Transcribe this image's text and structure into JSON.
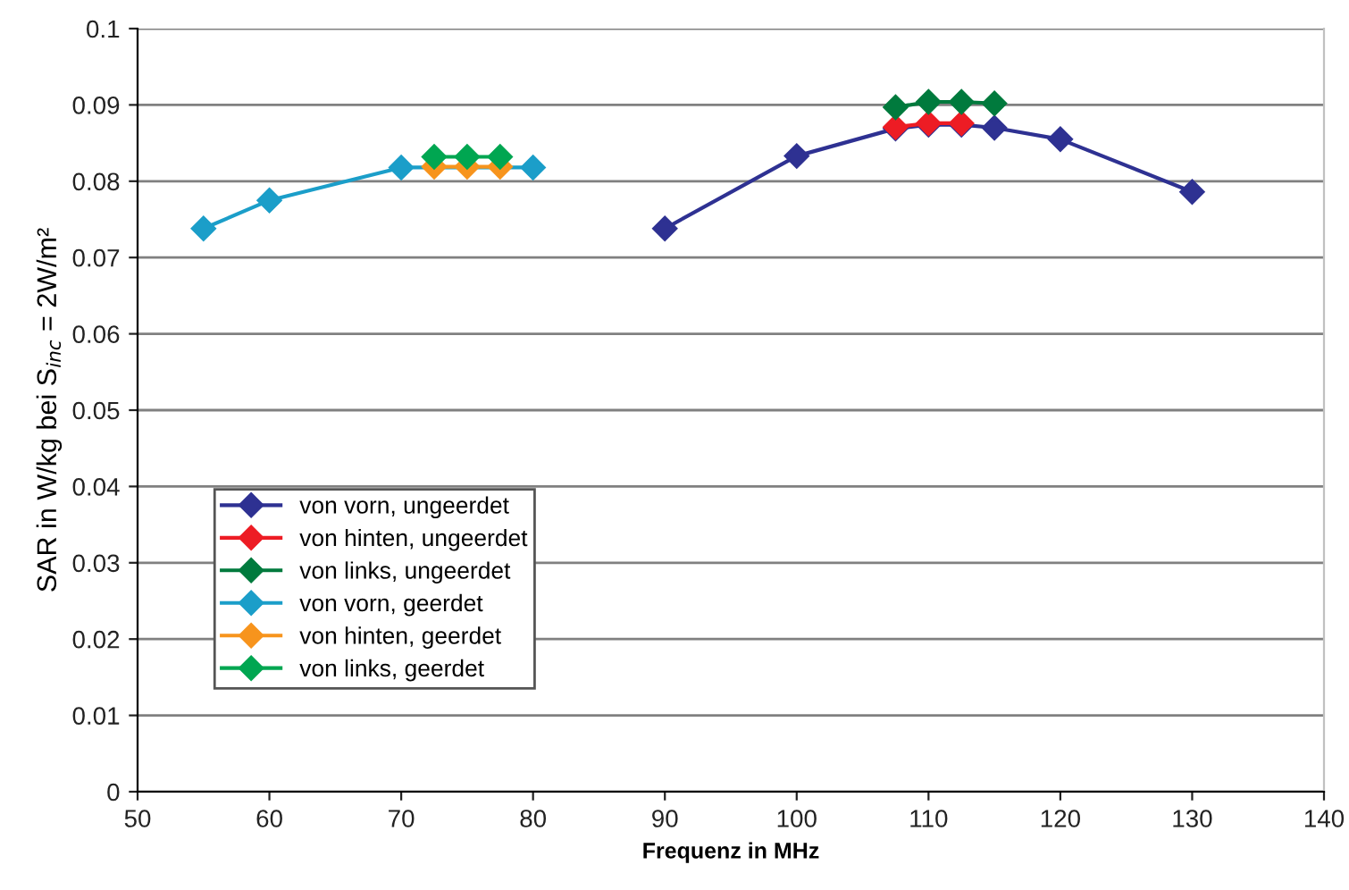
{
  "chart_data": {
    "type": "line",
    "xlabel": "Frequenz in MHz",
    "ylabel": "SAR in W/kg bei S$_{inc}$ = 2W/m²",
    "xlim": [
      50,
      140
    ],
    "ylim": [
      0,
      0.1
    ],
    "xticks": [
      50,
      60,
      70,
      80,
      90,
      100,
      110,
      120,
      130,
      140
    ],
    "yticks": [
      0,
      0.01,
      0.02,
      0.03,
      0.04,
      0.05,
      0.06,
      0.07,
      0.08,
      0.09,
      {
        "value": 0.1,
        "label": "0.1"
      }
    ],
    "grid": "y",
    "legend": "bottom left",
    "marker": "diamond",
    "line_style": "solid",
    "series": [
      {
        "name": "von vorn, ungeerdet",
        "color": "#2e3192",
        "x": [
          90,
          100,
          107.5,
          110,
          112.5,
          115,
          120,
          130
        ],
        "values": [
          0.0738,
          0.0833,
          0.0869,
          0.0874,
          0.0874,
          0.087,
          0.0855,
          0.0786
        ]
      },
      {
        "name": "von hinten, ungeerdet",
        "color": "#ed1c24",
        "x": [
          107.5,
          110,
          112.5
        ],
        "values": [
          0.0871,
          0.0876,
          0.0876
        ]
      },
      {
        "name": "von links, ungeerdet",
        "color": "#007a3d",
        "x": [
          107.5,
          110,
          112.5,
          115
        ],
        "values": [
          0.0897,
          0.0904,
          0.0904,
          0.0902
        ]
      },
      {
        "name": "von vorn, geerdet",
        "color": "#1b9ec9",
        "x": [
          55,
          60,
          70,
          80
        ],
        "values": [
          0.0738,
          0.0775,
          0.0818,
          0.0818
        ]
      },
      {
        "name": "von hinten, geerdet",
        "color": "#f7941d",
        "x": [
          72.5,
          75,
          77.5
        ],
        "values": [
          0.0819,
          0.0819,
          0.0819
        ]
      },
      {
        "name": "von links, geerdet",
        "color": "#00a651",
        "x": [
          72.5,
          75,
          77.5
        ],
        "values": [
          0.0832,
          0.0832,
          0.0832
        ]
      }
    ]
  }
}
